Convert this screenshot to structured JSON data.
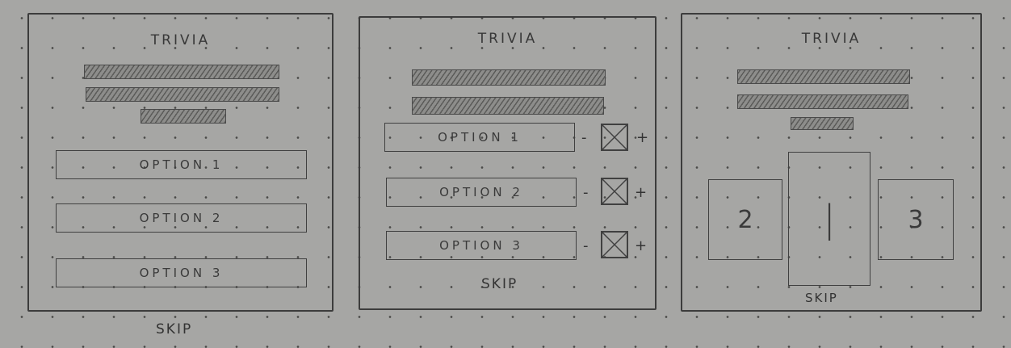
{
  "panel1": {
    "title": "TRIVIA",
    "options": [
      "OPTION 1",
      "OPTION 2",
      "OPTION 3"
    ],
    "skip": "SKIP"
  },
  "panel2": {
    "title": "TRIVIA",
    "options": [
      {
        "label": "OPTION 1",
        "minus": "-",
        "plus": "+"
      },
      {
        "label": "OPTION 2",
        "minus": "-",
        "plus": "+"
      },
      {
        "label": "OPTION 3",
        "minus": "-",
        "plus": "+"
      }
    ],
    "skip": "SKIP"
  },
  "panel3": {
    "title": "TRIVIA",
    "cards": [
      "2",
      "|",
      "3"
    ],
    "skip": "SKIP"
  }
}
